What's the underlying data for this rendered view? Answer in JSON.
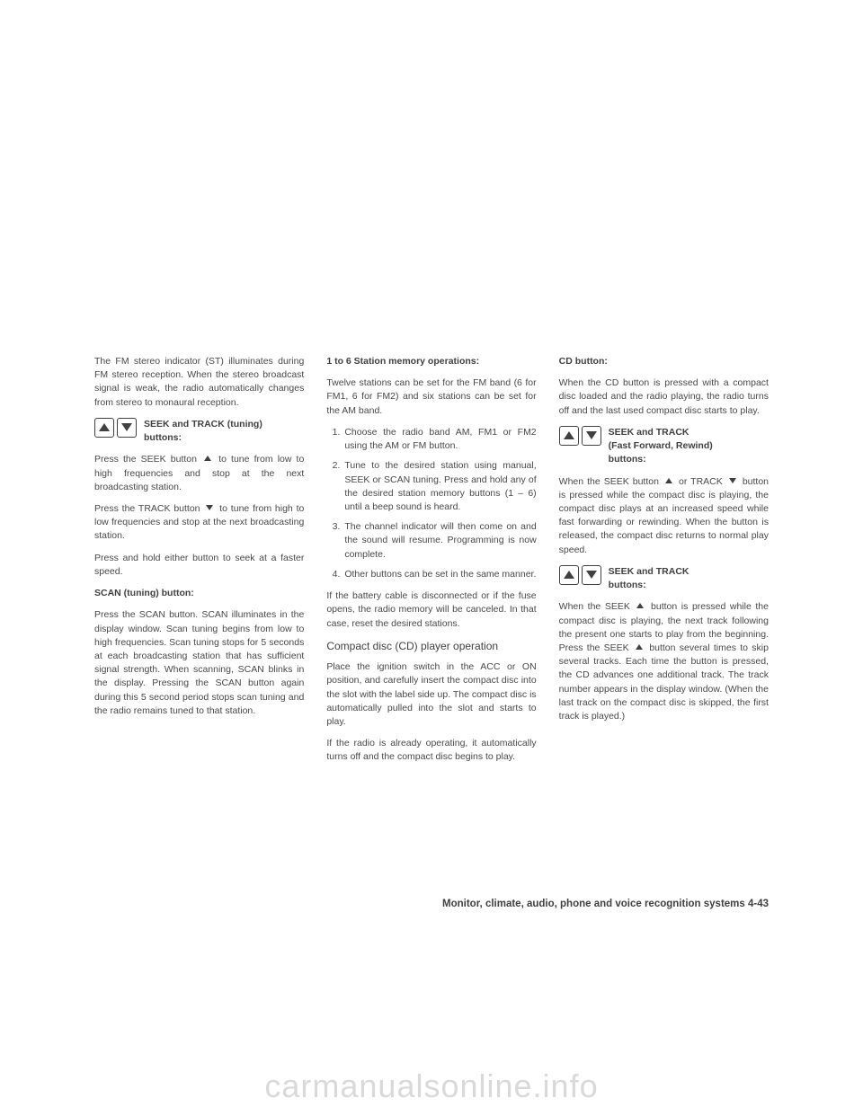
{
  "col1": {
    "p1": "The FM stereo indicator (ST) illuminates during FM stereo reception. When the stereo broadcast signal is weak, the radio automatically changes from stereo to monaural reception.",
    "icon1_label_a": "SEEK and TRACK (tuning)",
    "icon1_label_b": "buttons:",
    "p2a": "Press the SEEK button",
    "p2b": "to tune from low to high frequencies and stop at the next broadcasting station.",
    "p3a": "Press the TRACK button",
    "p3b": "to tune from high to low frequencies and stop at the next broadcasting station.",
    "p4": "Press and hold either button to seek at a faster speed.",
    "h1": "SCAN (tuning) button:",
    "p5": "Press the SCAN button. SCAN illuminates in the display window. Scan tuning begins from low to high frequencies. Scan tuning stops for 5 seconds at each broadcasting station that has sufficient signal strength. When scanning, SCAN blinks in the display. Pressing the SCAN button again during this 5 second period stops scan tuning and the radio remains tuned to that station."
  },
  "col2": {
    "h1": "1 to 6 Station memory operations:",
    "p1": "Twelve stations can be set for the FM band (6 for FM1, 6 for FM2) and six stations can be set for the AM band.",
    "li1": "Choose the radio band AM, FM1 or FM2 using the AM or FM button.",
    "li2": "Tune to the desired station using manual, SEEK or SCAN tuning. Press and hold any of the desired station memory buttons (1 – 6) until a beep sound is heard.",
    "li3": "The channel indicator will then come on and the sound will resume. Programming is now complete.",
    "li4": "Other buttons can be set in the same manner.",
    "p2": "If the battery cable is disconnected or if the fuse opens, the radio memory will be canceled. In that case, reset the desired stations.",
    "h2": "Compact disc (CD) player operation",
    "p3": "Place the ignition switch in the ACC or ON position, and carefully insert the compact disc into the slot with the label side up. The compact disc is automatically pulled into the slot and starts to play.",
    "p4": "If the radio is already operating, it automatically turns off and the compact disc begins to play."
  },
  "col3": {
    "h1": "CD button:",
    "p1": "When the CD button is pressed with a compact disc loaded and the radio playing, the radio turns off and the last used compact disc starts to play.",
    "icon1_a": "SEEK and TRACK",
    "icon1_b": "(Fast Forward, Rewind)",
    "icon1_c": "buttons:",
    "p2a": "When the SEEK button",
    "p2b": "or TRACK",
    "p2c": "button is pressed while the compact disc is playing, the compact disc plays at an increased speed while fast forwarding or rewinding. When the button is released, the compact disc returns to normal play speed.",
    "icon2_a": "SEEK and TRACK",
    "icon2_b": "buttons:",
    "p3a": "When the SEEK",
    "p3b": "button is pressed while the compact disc is playing, the next track following the present one starts to play from the beginning. Press the SEEK",
    "p3c": "button several times to skip several tracks. Each time the button is pressed, the CD advances one additional track. The track number appears in the display window. (When the last track on the compact disc is skipped, the first track is played.)"
  },
  "footer": "Monitor, climate, audio, phone and voice recognition systems    4-43",
  "watermark": "carmanualsonline.info"
}
